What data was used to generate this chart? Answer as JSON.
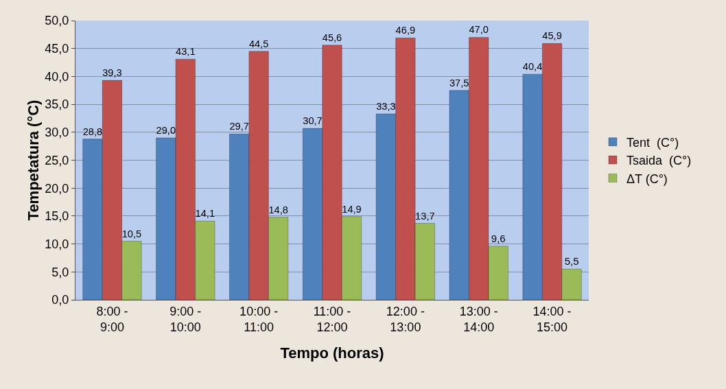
{
  "chart_data": {
    "type": "bar",
    "xlabel": "Tempo (horas)",
    "ylabel": "Tempetatura (°C)",
    "categories": [
      "8:00 - 9:00",
      "9:00 - 10:00",
      "10:00 - 11:00",
      "11:00 - 12:00",
      "12:00 - 13:00",
      "13:00 - 14:00",
      "14:00 - 15:00"
    ],
    "series": [
      {
        "name": "Tent  (C°)",
        "color": "#4f81bd",
        "values": [
          28.8,
          29.0,
          29.7,
          30.7,
          33.3,
          37.5,
          40.4
        ],
        "value_labels": [
          "28,8",
          "29,0",
          "29,7",
          "30,7",
          "33,3",
          "37,5",
          "40,4"
        ]
      },
      {
        "name": "Tsaida  (C°)",
        "color": "#c0504d",
        "values": [
          39.3,
          43.1,
          44.5,
          45.6,
          46.9,
          47.0,
          45.9
        ],
        "value_labels": [
          "39,3",
          "43,1",
          "44,5",
          "45,6",
          "46,9",
          "47,0",
          "45,9"
        ]
      },
      {
        "name": "ΔT (C°)",
        "color": "#9bbb59",
        "values": [
          10.5,
          14.1,
          14.8,
          14.9,
          13.7,
          9.6,
          5.5
        ],
        "value_labels": [
          "10,5",
          "14,1",
          "14,8",
          "14,9",
          "13,7",
          "9,6",
          "5,5"
        ]
      }
    ],
    "ylim": [
      0,
      50
    ],
    "yticks": [
      {
        "value": 0,
        "label": "0,0"
      },
      {
        "value": 5,
        "label": "5,0"
      },
      {
        "value": 10,
        "label": "10,0"
      },
      {
        "value": 15,
        "label": "15,0"
      },
      {
        "value": 20,
        "label": "20,0"
      },
      {
        "value": 25,
        "label": "25,0"
      },
      {
        "value": 30,
        "label": "30,0"
      },
      {
        "value": 35,
        "label": "35,0"
      },
      {
        "value": 40,
        "label": "40,0"
      },
      {
        "value": 45,
        "label": "45,0"
      },
      {
        "value": 50,
        "label": "50,0"
      }
    ],
    "grid": "y",
    "legend": "right"
  }
}
